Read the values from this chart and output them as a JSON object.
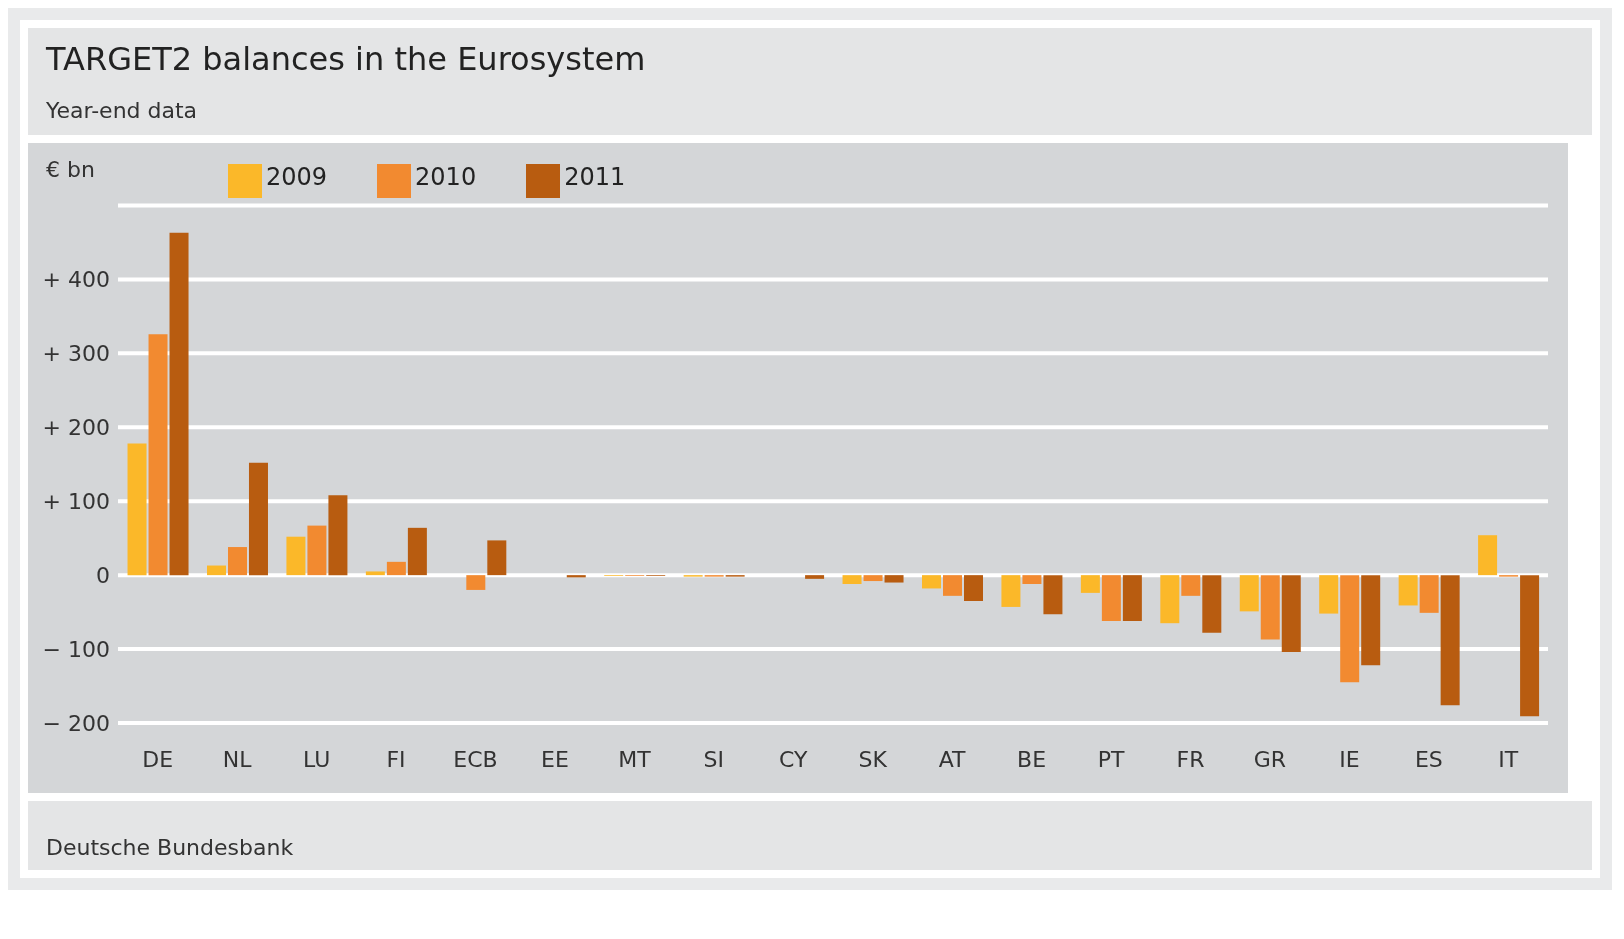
{
  "chart_data": {
    "type": "bar",
    "title": "TARGET2 balances in the Eurosystem",
    "subtitle": "Year-end data",
    "ylabel": "€ bn",
    "categories": [
      "DE",
      "NL",
      "LU",
      "FI",
      "ECB",
      "EE",
      "MT",
      "SI",
      "CY",
      "SK",
      "AT",
      "BE",
      "PT",
      "FR",
      "GR",
      "IE",
      "ES",
      "IT"
    ],
    "series": [
      {
        "name": "2009",
        "color": "#fbb829",
        "values": [
          178,
          13,
          52,
          5,
          0,
          0,
          -1,
          -2,
          0,
          -12,
          -18,
          -43,
          -24,
          -65,
          -49,
          -52,
          -41,
          54
        ]
      },
      {
        "name": "2010",
        "color": "#f28a30",
        "values": [
          326,
          38,
          67,
          18,
          -20,
          0,
          -1,
          -2,
          0,
          -8,
          -28,
          -12,
          -62,
          -28,
          -87,
          -145,
          -51,
          -2
        ]
      },
      {
        "name": "2011",
        "color": "#b85c10",
        "values": [
          463,
          152,
          108,
          64,
          47,
          -3,
          -1,
          -2,
          -5,
          -10,
          -35,
          -53,
          -62,
          -78,
          -104,
          -122,
          -176,
          -191
        ]
      }
    ],
    "ylim": [
      -200,
      500
    ],
    "yticks": [
      {
        "value": -200,
        "label": "− 200"
      },
      {
        "value": -100,
        "label": "− 100"
      },
      0,
      {
        "value": 100,
        "label": "+ 100"
      },
      {
        "value": 200,
        "label": "+ 200"
      },
      {
        "value": 300,
        "label": "+ 300"
      },
      {
        "value": 400,
        "label": "+ 400"
      },
      {
        "value": 500,
        "label": null
      }
    ],
    "grid": "y",
    "legend": "top left",
    "annotations": [
      "Deutsche Bundesbank"
    ]
  }
}
